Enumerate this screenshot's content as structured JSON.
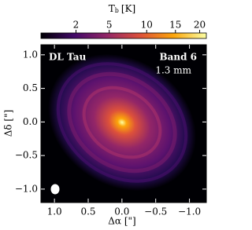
{
  "chart_data": {
    "type": "image",
    "annotations": {
      "source": "DL Tau",
      "band": "Band 6",
      "wavelength": "1.3 mm"
    },
    "xlabel": "Δα [\"]",
    "ylabel": "Δδ [\"]",
    "xlim": [
      1.2,
      -1.25
    ],
    "ylim": [
      -1.2,
      1.15
    ],
    "xticks": [
      {
        "value": 1.0,
        "label": "1.0"
      },
      {
        "value": 0.5,
        "label": "0.5"
      },
      {
        "value": 0.0,
        "label": "0.0"
      },
      {
        "value": -0.5,
        "label": "−0.5"
      },
      {
        "value": -1.0,
        "label": "−1.0"
      }
    ],
    "yticks": [
      {
        "value": 1.0,
        "label": "1.0"
      },
      {
        "value": 0.5,
        "label": "0.5"
      },
      {
        "value": 0.0,
        "label": "0.0"
      },
      {
        "value": -0.5,
        "label": "−0.5"
      },
      {
        "value": -1.0,
        "label": "−1.0"
      }
    ],
    "colorbar": {
      "label": {
        "symbol": "T",
        "subscript": "b",
        "unit": "[K]"
      },
      "clim": [
        0.3,
        21.5
      ],
      "stretch": "sqrt",
      "ticks": [
        2,
        5,
        10,
        15,
        20
      ],
      "colormap": [
        "#000004",
        "#420a68",
        "#932667",
        "#dd513a",
        "#fca50a",
        "#fcffa4"
      ]
    }
  }
}
